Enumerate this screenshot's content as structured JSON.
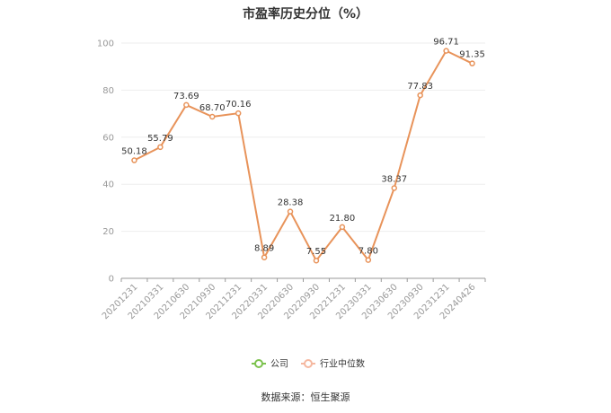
{
  "chart_data": {
    "type": "line",
    "title": "市盈率历史分位（%）",
    "xlabel": "",
    "ylabel": "",
    "ylim": [
      0,
      100
    ],
    "yticks": [
      0,
      20,
      40,
      60,
      80,
      100
    ],
    "grid": true,
    "legend_position": "bottom",
    "categories": [
      "20201231",
      "20210331",
      "20210630",
      "20210930",
      "20211231",
      "20220331",
      "20220630",
      "20220930",
      "20221231",
      "20230331",
      "20230630",
      "20230930",
      "20231231",
      "20240426"
    ],
    "series": [
      {
        "name": "公司",
        "color": "#e8935a",
        "values": [
          50.18,
          55.79,
          73.69,
          68.7,
          70.16,
          8.89,
          28.38,
          7.55,
          21.8,
          7.8,
          38.37,
          77.83,
          96.71,
          91.35
        ],
        "labels": [
          "50.18",
          "55.79",
          "73.69",
          "68.70",
          "70.16",
          "8.89",
          "28.38",
          "7.55",
          "21.80",
          "7.80",
          "38.37",
          "77.83",
          "96.71",
          "91.35"
        ]
      }
    ],
    "legend": [
      {
        "name": "公司",
        "color": "#7cc24e",
        "icon": "circle-line-icon"
      },
      {
        "name": "行业中位数",
        "color": "#f5b8a0",
        "icon": "circle-line-icon"
      }
    ]
  },
  "footer": {
    "source": "数据来源：恒生聚源"
  }
}
